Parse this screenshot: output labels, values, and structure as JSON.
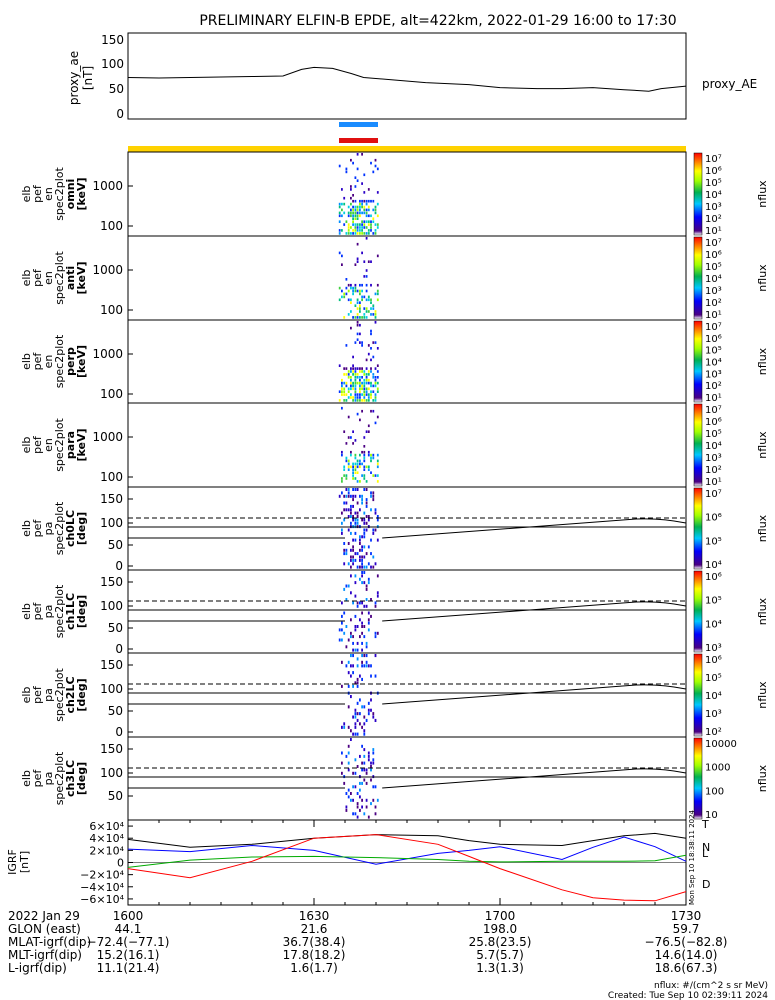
{
  "title": "PRELIMINARY ELFIN-B EPDE, alt=422km, 2022-01-29 16:00 to 17:30",
  "colors": {
    "yellow_bar": "#ffd200",
    "blue_bar": "#1a8cff",
    "red_bar": "#e01010",
    "T": "#000000",
    "N": "#0000ff",
    "L": "#00aa00",
    "D": "#ff0000"
  },
  "chart_data": [
    {
      "name": "proxy_ae",
      "type": "line",
      "ylabel": [
        "proxy_ae",
        "[nT]"
      ],
      "yticks": [
        "150",
        "100",
        "50",
        "0"
      ],
      "ylim": [
        -10,
        160
      ],
      "legend": "proxy_AE",
      "x_minutes": [
        0,
        5,
        10,
        15,
        20,
        25,
        28,
        30,
        33,
        36,
        38,
        42,
        48,
        55,
        60,
        66,
        70,
        75,
        80,
        84,
        86,
        90
      ],
      "values": [
        72,
        71,
        72,
        73,
        74,
        75,
        88,
        92,
        90,
        80,
        72,
        68,
        62,
        58,
        52,
        50,
        50,
        52,
        48,
        45,
        50,
        55
      ]
    },
    {
      "name": "spec_omni",
      "type": "heatmap",
      "ylabel": [
        "elb",
        "pef",
        "en",
        "spec2plot",
        "omni",
        "[keV]"
      ],
      "yticks": [
        "1000",
        "100"
      ],
      "cbar_ticks": [
        "10⁷",
        "10⁶",
        "10⁵",
        "10⁴",
        "10³",
        "10²",
        "10¹"
      ],
      "cbar_label": "nflux"
    },
    {
      "name": "spec_anti",
      "type": "heatmap",
      "ylabel": [
        "elb",
        "pef",
        "en",
        "spec2plot",
        "anti",
        "[keV]"
      ],
      "yticks": [
        "1000",
        "100"
      ],
      "cbar_ticks": [
        "10⁷",
        "10⁶",
        "10⁵",
        "10⁴",
        "10³",
        "10²",
        "10¹"
      ],
      "cbar_label": "nflux"
    },
    {
      "name": "spec_perp",
      "type": "heatmap",
      "ylabel": [
        "elb",
        "pef",
        "en",
        "spec2plot",
        "perp",
        "[keV]"
      ],
      "yticks": [
        "1000",
        "100"
      ],
      "cbar_ticks": [
        "10⁷",
        "10⁶",
        "10⁵",
        "10⁴",
        "10³",
        "10²",
        "10¹"
      ],
      "cbar_label": "nflux"
    },
    {
      "name": "spec_para",
      "type": "heatmap",
      "ylabel": [
        "elb",
        "pef",
        "en",
        "spec2plot",
        "para",
        "[keV]"
      ],
      "yticks": [
        "1000",
        "100"
      ],
      "cbar_ticks": [
        "10⁷",
        "10⁶",
        "10⁵",
        "10⁴",
        "10³",
        "10²",
        "10¹"
      ],
      "cbar_label": "nflux"
    },
    {
      "name": "pa_ch0",
      "type": "heatmap",
      "ylabel": [
        "elb",
        "pef",
        "pa",
        "spec2plot",
        "ch0LC",
        "[deg]"
      ],
      "yticks": [
        "150",
        "100",
        "50",
        "0"
      ],
      "cbar_ticks": [
        "10⁷",
        "10⁶",
        "10⁵",
        "10⁴"
      ],
      "cbar_label": "nflux"
    },
    {
      "name": "pa_ch1",
      "type": "heatmap",
      "ylabel": [
        "elb",
        "pef",
        "pa",
        "spec2plot",
        "ch1LC",
        "[deg]"
      ],
      "yticks": [
        "150",
        "100",
        "50",
        "0"
      ],
      "cbar_ticks": [
        "10⁶",
        "10⁵",
        "10⁴",
        "10³"
      ],
      "cbar_label": "nflux"
    },
    {
      "name": "pa_ch2",
      "type": "heatmap",
      "ylabel": [
        "elb",
        "pef",
        "pa",
        "spec2plot",
        "ch2LC",
        "[deg]"
      ],
      "yticks": [
        "150",
        "100",
        "50",
        "0"
      ],
      "cbar_ticks": [
        "10⁶",
        "10⁵",
        "10⁴",
        "10³",
        "10²"
      ],
      "cbar_label": "nflux"
    },
    {
      "name": "pa_ch3",
      "type": "heatmap",
      "ylabel": [
        "elb",
        "pef",
        "pa",
        "spec2plot",
        "ch3LC",
        "[deg]"
      ],
      "yticks": [
        "150",
        "100",
        "50"
      ],
      "cbar_ticks": [
        "10000",
        "1000",
        "100",
        "10"
      ],
      "cbar_label": "nflux"
    },
    {
      "name": "igrf",
      "type": "line",
      "ylabel": [
        "IGRF",
        "[nT]"
      ],
      "yticks": [
        "6×10⁴",
        "4×10⁴",
        "2×10⁴",
        "0",
        "−2×10⁴",
        "−4×10⁴",
        "−6×10⁴"
      ],
      "ylim": [
        -70000,
        70000
      ],
      "series_labels": [
        "T",
        "N",
        "L",
        "D"
      ],
      "x_minutes": [
        0,
        10,
        20,
        30,
        40,
        50,
        55,
        60,
        70,
        75,
        80,
        85,
        90
      ],
      "series": [
        {
          "name": "T",
          "values": [
            38000,
            25000,
            30000,
            40000,
            46000,
            44000,
            36000,
            30000,
            28000,
            36000,
            44000,
            48000,
            40000
          ]
        },
        {
          "name": "N",
          "values": [
            22000,
            18000,
            28000,
            20000,
            -3000,
            15000,
            20000,
            26000,
            5000,
            25000,
            42000,
            26000,
            2000
          ]
        },
        {
          "name": "L",
          "values": [
            -8000,
            4000,
            9000,
            10000,
            8000,
            5000,
            2000,
            1000,
            2000,
            2000,
            2000,
            3000,
            12000
          ]
        },
        {
          "name": "D",
          "values": [
            -10000,
            -25000,
            2000,
            40000,
            46000,
            30000,
            10000,
            -10000,
            -45000,
            -58000,
            -62000,
            -63000,
            -48000
          ]
        }
      ]
    }
  ],
  "vertical_label": "Mon Sep 10 18:38:11 2024",
  "axis_table": {
    "rows": [
      {
        "label": "2022 Jan 29",
        "values": [
          "1600",
          "1630",
          "1700",
          "1730"
        ]
      },
      {
        "label": "GLON (east)",
        "values": [
          "44.1",
          "21.6",
          "198.0",
          "59.7"
        ]
      },
      {
        "label": "MLAT-igrf(dip)",
        "values": [
          "−72.4(−77.1)",
          "36.7(38.4)",
          "25.8(23.5)",
          "−76.5(−82.8)"
        ]
      },
      {
        "label": "MLT-igrf(dip)",
        "values": [
          "15.2(16.1)",
          "17.8(18.2)",
          "5.7(5.7)",
          "14.6(14.0)"
        ]
      },
      {
        "label": "L-igrf(dip)",
        "values": [
          "11.1(21.4)",
          "1.6(1.7)",
          "1.3(1.3)",
          "18.6(67.3)"
        ]
      }
    ]
  },
  "footer": {
    "units": "nflux: #/(cm^2 s sr MeV)",
    "created": "Created: Tue Sep 10 02:39:11 2024"
  }
}
